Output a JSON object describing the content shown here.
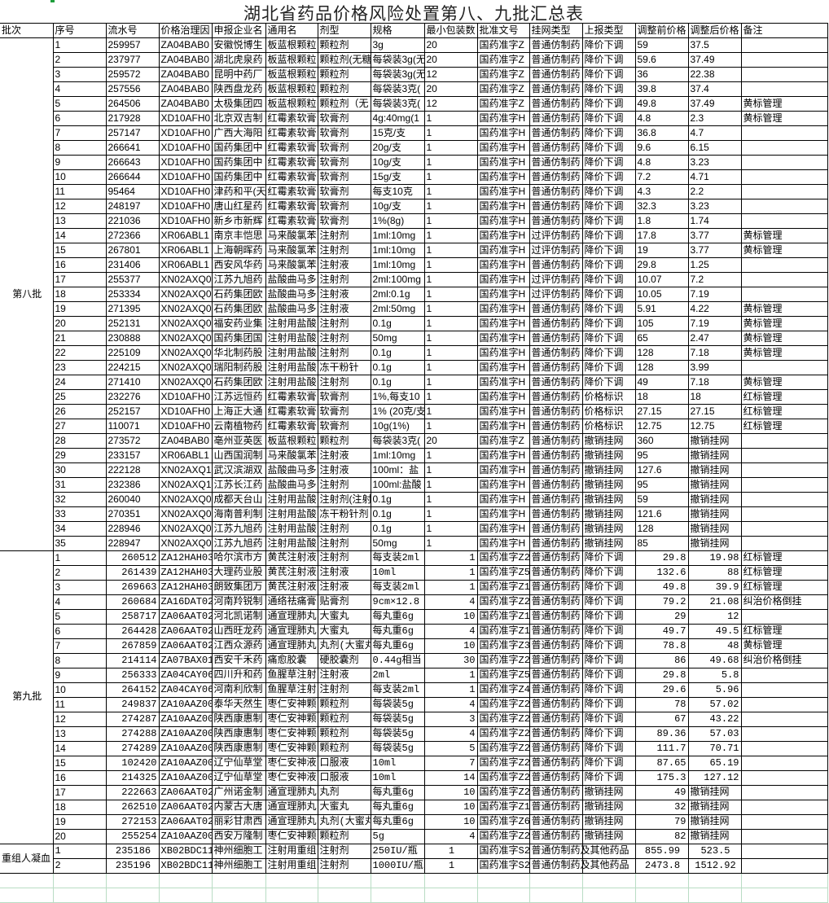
{
  "title": "湖北省药品价格风险处置第八、九批汇总表",
  "headers": [
    "批次",
    "序号",
    "流水号",
    "价格治理因",
    "申报企业名",
    "通用名",
    "剂型",
    "规格",
    "最小包装数",
    "批准文号",
    "挂网类型",
    "上报类型",
    "调整前价格",
    "调整后价格",
    "备注"
  ],
  "batches": [
    {
      "label": "第八批",
      "style": "b8",
      "rows": [
        [
          "1",
          "259957",
          "ZA04BAB0",
          "安徽悦博生",
          "板蓝根颗粒",
          "颗粒剂",
          "3g",
          "20",
          "国药准字Z",
          "普通仿制药",
          "降价下调",
          "59",
          "37.5",
          ""
        ],
        [
          "2",
          "237977",
          "ZA04BAB0",
          "湖北虎泉药",
          "板蓝根颗粒",
          "颗粒剂(无糖",
          "每袋装3g(无",
          "20",
          "国药准字Z",
          "普通仿制药",
          "降价下调",
          "59.6",
          "37.49",
          ""
        ],
        [
          "3",
          "259572",
          "ZA04BAB0",
          "昆明中药厂",
          "板蓝根颗粒",
          "颗粒剂",
          "每袋装3g(无",
          "12",
          "国药准字Z",
          "普通仿制药",
          "降价下调",
          "36",
          "22.38",
          ""
        ],
        [
          "4",
          "257556",
          "ZA04BAB0",
          "陕西盘龙药",
          "板蓝根颗粒",
          "颗粒剂",
          "每袋装3克(",
          "20",
          "国药准字Z",
          "普通仿制药",
          "降价下调",
          "39.8",
          "37.4",
          ""
        ],
        [
          "5",
          "264506",
          "ZA04BAB0",
          "太极集团四",
          "板蓝根颗粒",
          "颗粒剂（无",
          "每袋装3克(",
          "12",
          "国药准字Z",
          "普通仿制药",
          "降价下调",
          "49.8",
          "37.49",
          "黄标管理"
        ],
        [
          "6",
          "217928",
          "XD10AFH0",
          "北京双吉制",
          "红霉素软膏",
          "软膏剂",
          "4g:40mg(1",
          "1",
          "国药准字H",
          "普通仿制药",
          "降价下调",
          "4.8",
          "2.3",
          "黄标管理"
        ],
        [
          "7",
          "257147",
          "XD10AFH0",
          "广西大海阳",
          "红霉素软膏",
          "软膏剂",
          "15克/支",
          "1",
          "国药准字H",
          "普通仿制药",
          "降价下调",
          "36.8",
          "4.7",
          ""
        ],
        [
          "8",
          "266641",
          "XD10AFH0",
          "国药集团中",
          "红霉素软膏",
          "软膏剂",
          "20g/支",
          "1",
          "国药准字H",
          "普通仿制药",
          "降价下调",
          "9.6",
          "6.15",
          ""
        ],
        [
          "9",
          "266643",
          "XD10AFH0",
          "国药集团中",
          "红霉素软膏",
          "软膏剂",
          "10g/支",
          "1",
          "国药准字H",
          "普通仿制药",
          "降价下调",
          "4.8",
          "3.23",
          ""
        ],
        [
          "10",
          "266644",
          "XD10AFH0",
          "国药集团中",
          "红霉素软膏",
          "软膏剂",
          "15g/支",
          "1",
          "国药准字H",
          "普通仿制药",
          "降价下调",
          "7.2",
          "4.71",
          ""
        ],
        [
          "11",
          "95464",
          "XD10AFH0",
          "津药和平(天",
          "红霉素软膏",
          "软膏剂",
          "每支10克",
          "1",
          "国药准字H",
          "普通仿制药",
          "降价下调",
          "4.3",
          "2.2",
          ""
        ],
        [
          "12",
          "248197",
          "XD10AFH0",
          "唐山红星药",
          "红霉素软膏",
          "软膏剂",
          "10g/支",
          "1",
          "国药准字H",
          "普通仿制药",
          "降价下调",
          "32.3",
          "3.23",
          ""
        ],
        [
          "13",
          "221036",
          "XD10AFH0",
          "新乡市新辉",
          "红霉素软膏",
          "软膏剂",
          "1%(8g)",
          "1",
          "国药准字H",
          "普通仿制药",
          "降价下调",
          "1.8",
          "1.74",
          ""
        ],
        [
          "14",
          "272366",
          "XR06ABL1",
          "南京丰恺思",
          "马来酸氯苯",
          "注射剂",
          "1ml:10mg",
          "1",
          "国药准字H",
          "过评仿制药",
          "降价下调",
          "17.8",
          "3.77",
          "黄标管理"
        ],
        [
          "15",
          "267801",
          "XR06ABL1",
          "上海朝晖药",
          "马来酸氯苯",
          "注射剂",
          "1ml:10mg",
          "1",
          "国药准字H",
          "过评仿制药",
          "降价下调",
          "19",
          "3.77",
          "黄标管理"
        ],
        [
          "16",
          "231406",
          "XR06ABL1",
          "西安风华药",
          "马来酸氯苯",
          "注射液",
          "1ml:10mg",
          "1",
          "国药准字H",
          "普通仿制药",
          "降价下调",
          "29.8",
          "1.25",
          ""
        ],
        [
          "17",
          "255377",
          "XN02AXQ0",
          "江苏九旭药",
          "盐酸曲马多",
          "注射剂",
          "2ml:100mg",
          "1",
          "国药准字H",
          "过评仿制药",
          "降价下调",
          "10.07",
          "7.2",
          ""
        ],
        [
          "18",
          "253334",
          "XN02AXQ0",
          "石药集团欧",
          "盐酸曲马多",
          "注射液",
          "2ml:0.1g",
          "1",
          "国药准字H",
          "过评仿制药",
          "降价下调",
          "10.05",
          "7.19",
          ""
        ],
        [
          "19",
          "271395",
          "XN02AXQ0",
          "石药集团欧",
          "盐酸曲马多",
          "注射液",
          "2ml:50mg",
          "1",
          "国药准字H",
          "普通仿制药",
          "降价下调",
          "5.91",
          "4.22",
          "黄标管理"
        ],
        [
          "20",
          "252131",
          "XN02AXQ0",
          "福安药业集",
          "注射用盐酸",
          "注射剂",
          "0.1g",
          "1",
          "国药准字H",
          "普通仿制药",
          "降价下调",
          "105",
          "7.19",
          "黄标管理"
        ],
        [
          "21",
          "230888",
          "XN02AXQ0",
          "国药集团国",
          "注射用盐酸",
          "注射剂",
          "50mg",
          "1",
          "国药准字H",
          "普通仿制药",
          "降价下调",
          "65",
          "2.47",
          "黄标管理"
        ],
        [
          "22",
          "225109",
          "XN02AXQ0",
          "华北制药股",
          "注射用盐酸",
          "注射剂",
          "0.1g",
          "1",
          "国药准字H",
          "普通仿制药",
          "降价下调",
          "128",
          "7.18",
          "黄标管理"
        ],
        [
          "23",
          "224215",
          "XN02AXQ0",
          "瑞阳制药股",
          "注射用盐酸",
          "冻干粉针",
          "0.1g",
          "1",
          "国药准字H",
          "普通仿制药",
          "降价下调",
          "128",
          "3.99",
          ""
        ],
        [
          "24",
          "271410",
          "XN02AXQ0",
          "石药集团欧",
          "注射用盐酸",
          "注射剂",
          "0.1g",
          "1",
          "国药准字H",
          "普通仿制药",
          "降价下调",
          "49",
          "7.18",
          "黄标管理"
        ],
        [
          "25",
          "232276",
          "XD10AFH0",
          "江苏远恒药",
          "红霉素软膏",
          "软膏剂",
          "1%,每支10",
          "1",
          "国药准字H",
          "普通仿制药",
          "价格标识",
          "18",
          "18",
          "红标管理"
        ],
        [
          "26",
          "252157",
          "XD10AFH0",
          "上海正大通",
          "红霉素软膏",
          "软膏剂",
          "1% (20克/支",
          "1",
          "国药准字H",
          "普通仿制药",
          "价格标识",
          "27.15",
          "27.15",
          "红标管理"
        ],
        [
          "27",
          "110071",
          "XD10AFH0",
          "云南植物药",
          "红霉素软膏",
          "软膏剂",
          "10g(1%)",
          "1",
          "国药准字H",
          "普通仿制药",
          "价格标识",
          "12.75",
          "12.75",
          "红标管理"
        ],
        [
          "28",
          "273572",
          "ZA04BAB0",
          "亳州亚英医",
          "板蓝根颗粒",
          "颗粒剂",
          "每袋装3克(",
          "20",
          "国药准字Z",
          "普通仿制药",
          "撤销挂网",
          "360",
          "撤销挂网",
          ""
        ],
        [
          "29",
          "233157",
          "XR06ABL1",
          "山西国润制",
          "马来酸氯苯",
          "注射液",
          "1ml:10mg",
          "1",
          "国药准字H",
          "普通仿制药",
          "撤销挂网",
          "95",
          "撤销挂网",
          ""
        ],
        [
          "30",
          "222128",
          "XN02AXQ1",
          "武汉滨湖双",
          "盐酸曲马多",
          "注射液",
          "100ml：盐",
          "1",
          "国药准字H",
          "普通仿制药",
          "撤销挂网",
          "127.6",
          "撤销挂网",
          ""
        ],
        [
          "31",
          "232386",
          "XN02AXQ1",
          "江苏长江药",
          "盐酸曲马多",
          "注射剂",
          "100ml:盐酸",
          "1",
          "国药准字H",
          "普通仿制药",
          "撤销挂网",
          "95",
          "撤销挂网",
          ""
        ],
        [
          "32",
          "260040",
          "XN02AXQ0",
          "成都天台山",
          "注射用盐酸",
          "注射剂(注射",
          "0.1g",
          "1",
          "国药准字H",
          "普通仿制药",
          "撤销挂网",
          "59",
          "撤销挂网",
          ""
        ],
        [
          "33",
          "270351",
          "XN02AXQ0",
          "海南普利制",
          "注射用盐酸",
          "冻干粉针剂",
          "0.1g",
          "1",
          "国药准字H",
          "普通仿制药",
          "撤销挂网",
          "121.6",
          "撤销挂网",
          ""
        ],
        [
          "34",
          "228946",
          "XN02AXQ0",
          "江苏九旭药",
          "注射用盐酸",
          "注射剂",
          "0.1g",
          "1",
          "国药准字H",
          "普通仿制药",
          "撤销挂网",
          "128",
          "撤销挂网",
          ""
        ],
        [
          "35",
          "228947",
          "XN02AXQ0",
          "江苏九旭药",
          "注射用盐酸",
          "注射剂",
          "50mg",
          "1",
          "国药准字H",
          "普通仿制药",
          "撤销挂网",
          "85",
          "撤销挂网",
          ""
        ]
      ]
    },
    {
      "label": "第九批",
      "style": "b9",
      "rows": [
        [
          "1",
          "260512",
          "ZA12HAH03",
          "哈尔滨市方",
          "黄芪注射液",
          "注射剂",
          "每支装2ml",
          "1",
          "国药准字Z2",
          "普通仿制药",
          "降价下调",
          "29.8",
          "19.98",
          "红标管理"
        ],
        [
          "2",
          "261439",
          "ZA12HAH03",
          "大理药业股",
          "黄芪注射液",
          "注射液",
          "10ml",
          "1",
          "国药准字Z5",
          "普通仿制药",
          "降价下调",
          "132.6",
          "88",
          "红标管理"
        ],
        [
          "3",
          "269663",
          "ZA12HAH03",
          "朗致集团万",
          "黄芪注射液",
          "注射液",
          "每支装2ml",
          "1",
          "国药准字Z1",
          "普通仿制药",
          "降价下调",
          "49.8",
          "39.9",
          "红标管理"
        ],
        [
          "4",
          "260684",
          "ZA16DAT02",
          "河南羚锐制",
          "通络祛痛膏",
          "贴膏剂",
          "9cm×12.8",
          "4",
          "国药准字Z2",
          "普通仿制药",
          "降价下调",
          "79.2",
          "21.08",
          "纠治价格倒挂"
        ],
        [
          "5",
          "258717",
          "ZA06AAT02",
          "河北凯诺制",
          "通宣理肺丸",
          "大蜜丸",
          "每丸重6g",
          "10",
          "国药准字Z1",
          "普通仿制药",
          "降价下调",
          "29",
          "12",
          ""
        ],
        [
          "6",
          "264428",
          "ZA06AAT02",
          "山西旺龙药",
          "通宣理肺丸",
          "大蜜丸",
          "每丸重6g",
          "4",
          "国药准字Z1",
          "普通仿制药",
          "降价下调",
          "49.7",
          "49.5",
          "红标管理"
        ],
        [
          "7",
          "267859",
          "ZA06AAT02",
          "江西众源药",
          "通宣理肺丸",
          "丸剂(大蜜丸",
          "每丸重6g",
          "10",
          "国药准字Z3",
          "普通仿制药",
          "降价下调",
          "78.8",
          "48",
          "黄标管理"
        ],
        [
          "8",
          "214114",
          "ZA07BAX01",
          "西安千禾药",
          "痛愈胶囊",
          "硬胶囊剂",
          "0.44g相当",
          "30",
          "国药准字Z2",
          "普通仿制药",
          "降价下调",
          "86",
          "49.68",
          "纠治价格倒挂"
        ],
        [
          "9",
          "256333",
          "ZA04CAY06",
          "四川升和药",
          "鱼腥草注射",
          "注射液",
          "2ml",
          "1",
          "国药准字Z5",
          "普通仿制药",
          "降价下调",
          "29.8",
          "5.8",
          ""
        ],
        [
          "10",
          "264152",
          "ZA04CAY06",
          "河南利欣制",
          "鱼腥草注射",
          "注射剂",
          "每支装2ml",
          "1",
          "国药准字Z4",
          "普通仿制药",
          "降价下调",
          "29.6",
          "5.96",
          ""
        ],
        [
          "11",
          "249837",
          "ZA10AAZ00",
          "泰华天然生",
          "枣仁安神颗",
          "颗粒剂",
          "每袋装5g",
          "4",
          "国药准字Z2",
          "普通仿制药",
          "降价下调",
          "78",
          "57.02",
          ""
        ],
        [
          "12",
          "274287",
          "ZA10AAZ00",
          "陕西康惠制",
          "枣仁安神颗",
          "颗粒剂",
          "每袋装5g",
          "3",
          "国药准字Z2",
          "普通仿制药",
          "降价下调",
          "67",
          "43.22",
          ""
        ],
        [
          "13",
          "274288",
          "ZA10AAZ00",
          "陕西康惠制",
          "枣仁安神颗",
          "颗粒剂",
          "每袋装5g",
          "4",
          "国药准字Z2",
          "普通仿制药",
          "降价下调",
          "89.36",
          "57.03",
          ""
        ],
        [
          "14",
          "274289",
          "ZA10AAZ00",
          "陕西康惠制",
          "枣仁安神颗",
          "颗粒剂",
          "每袋装5g",
          "5",
          "国药准字Z2",
          "普通仿制药",
          "降价下调",
          "111.7",
          "70.71",
          ""
        ],
        [
          "15",
          "102420",
          "ZA10AAZ00",
          "辽宁仙草堂",
          "枣仁安神液",
          "口服液",
          "10ml",
          "7",
          "国药准字Z2",
          "普通仿制药",
          "降价下调",
          "87.65",
          "65.19",
          ""
        ],
        [
          "16",
          "214325",
          "ZA10AAZ00",
          "辽宁仙草堂",
          "枣仁安神液",
          "口服液",
          "10ml",
          "14",
          "国药准字Z2",
          "普通仿制药",
          "降价下调",
          "175.3",
          "127.12",
          ""
        ],
        [
          "17",
          "222663",
          "ZA06AAT02",
          "广州诺金制",
          "通宣理肺丸",
          "丸剂",
          "每丸重6g",
          "10",
          "国药准字Z2",
          "普通仿制药",
          "撤销挂网",
          "49",
          "撤销挂网",
          ""
        ],
        [
          "18",
          "262510",
          "ZA06AAT02",
          "内蒙古大唐",
          "通宣理肺丸",
          "大蜜丸",
          "每丸重6g",
          "10",
          "国药准字Z1",
          "普通仿制药",
          "撤销挂网",
          "32",
          "撤销挂网",
          ""
        ],
        [
          "19",
          "272153",
          "ZA06AAT02",
          "丽彩甘肃西",
          "通宣理肺丸",
          "丸剂(大蜜丸",
          "每丸重6g",
          "10",
          "国药准字Z6",
          "普通仿制药",
          "撤销挂网",
          "79",
          "撤销挂网",
          ""
        ],
        [
          "20",
          "255254",
          "ZA10AAZ00",
          "西安万隆制",
          "枣仁安神颗",
          "颗粒剂",
          "5g",
          "4",
          "国药准字Z2",
          "普通仿制药",
          "撤销挂网",
          "82",
          "撤销挂网",
          ""
        ]
      ]
    },
    {
      "label": "重组人凝血",
      "style": "b10",
      "rows": [
        [
          "1",
          "235186",
          "XB02BDC11",
          "神州细胞工",
          "注射用重组",
          "注射剂",
          "250IU/瓶",
          "1",
          "国药准字S2",
          "普通仿制药及其他药品",
          "",
          "855.99",
          "523.5",
          ""
        ],
        [
          "2",
          "235196",
          "XB02BDC11",
          "神州细胞工",
          "注射用重组",
          "注射剂",
          "1000IU/瓶",
          "1",
          "国药准字S2",
          "普通仿制药及其他药品",
          "",
          "2473.8",
          "1512.92",
          ""
        ]
      ]
    }
  ],
  "colors": {
    "grid": "#000000",
    "empty_grid": "#b9dcc4",
    "cell_cursor": "#1e9e3c"
  }
}
